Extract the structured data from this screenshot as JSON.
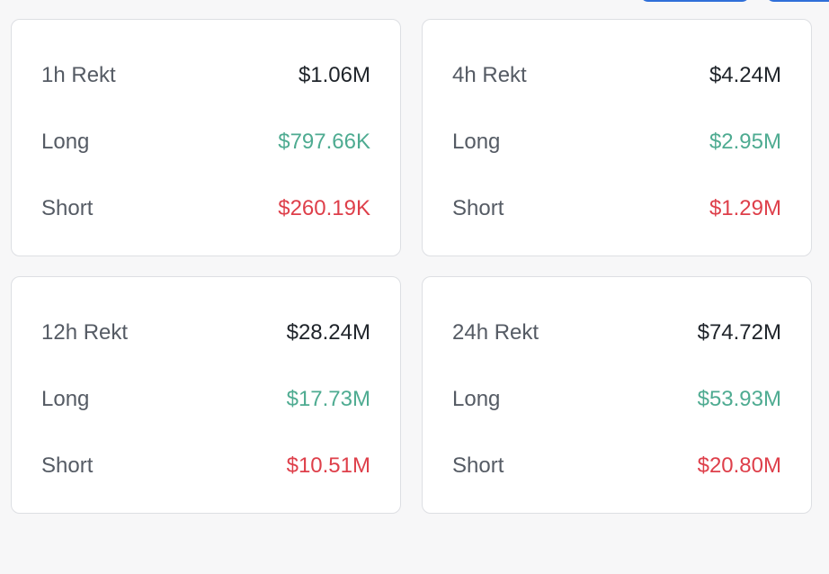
{
  "cards": [
    {
      "title": "1h Rekt",
      "total": "$1.06M",
      "long_label": "Long",
      "long_value": "$797.66K",
      "short_label": "Short",
      "short_value": "$260.19K"
    },
    {
      "title": "4h Rekt",
      "total": "$4.24M",
      "long_label": "Long",
      "long_value": "$2.95M",
      "short_label": "Short",
      "short_value": "$1.29M"
    },
    {
      "title": "12h Rekt",
      "total": "$28.24M",
      "long_label": "Long",
      "long_value": "$17.73M",
      "short_label": "Short",
      "short_value": "$10.51M"
    },
    {
      "title": "24h Rekt",
      "total": "$74.72M",
      "long_label": "Long",
      "long_value": "$53.93M",
      "short_label": "Short",
      "short_value": "$20.80M"
    }
  ],
  "colors": {
    "long": "#4eab91",
    "short": "#de3f4a",
    "total": "#1e2329",
    "accent": "#2f6fd9"
  }
}
